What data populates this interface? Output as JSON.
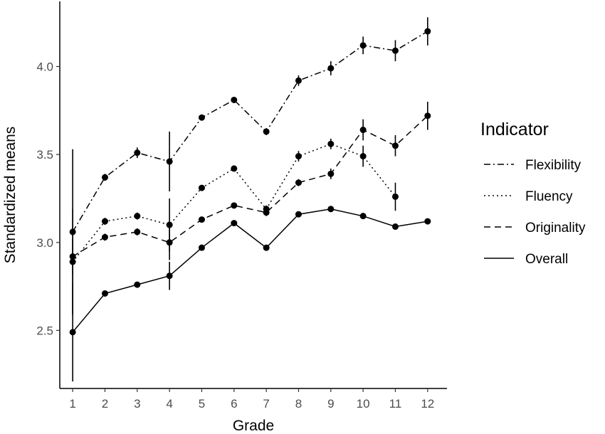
{
  "chart_data": {
    "type": "line",
    "xlabel": "Grade",
    "ylabel": "Standardized means",
    "x": [
      1,
      2,
      3,
      4,
      5,
      6,
      7,
      8,
      9,
      10,
      11,
      12
    ],
    "xlim": [
      0.6,
      12.6
    ],
    "ylim": [
      2.17,
      4.37
    ],
    "yticks": [
      2.5,
      3.0,
      3.5,
      4.0
    ],
    "yticklabels": [
      "2.5",
      "3.0",
      "3.5",
      "4.0"
    ],
    "grid": false,
    "legend": {
      "title": "Indicator",
      "position": "right",
      "entries": [
        "Flexibility",
        "Fluency",
        "Originality",
        "Overall"
      ]
    },
    "series": [
      {
        "name": "Flexibility",
        "dash": "dotdash",
        "values": [
          3.06,
          3.37,
          3.51,
          3.46,
          3.71,
          3.81,
          3.63,
          3.92,
          3.99,
          4.12,
          4.09,
          4.2
        ],
        "err": [
          0.47,
          0.02,
          0.03,
          0.17,
          0.01,
          0.01,
          0.02,
          0.03,
          0.04,
          0.05,
          0.06,
          0.08
        ]
      },
      {
        "name": "Fluency",
        "dash": "dotted",
        "values": [
          2.89,
          3.12,
          3.15,
          3.1,
          3.31,
          3.42,
          3.19,
          3.49,
          3.56,
          3.49,
          3.26,
          null
        ],
        "err": [
          0.3,
          0.02,
          0.02,
          0.15,
          0.01,
          0.01,
          0.02,
          0.03,
          0.03,
          0.06,
          0.08,
          null
        ]
      },
      {
        "name": "Originality",
        "dash": "dashed",
        "values": [
          2.92,
          3.03,
          3.06,
          3.0,
          3.13,
          3.21,
          3.17,
          3.34,
          3.39,
          3.64,
          3.55,
          3.72
        ],
        "err": [
          0.1,
          0.02,
          0.02,
          0.1,
          0.01,
          0.01,
          0.02,
          0.02,
          0.03,
          0.06,
          0.06,
          0.08
        ]
      },
      {
        "name": "Overall",
        "dash": "solid",
        "values": [
          2.49,
          2.71,
          2.76,
          2.81,
          2.97,
          3.11,
          2.97,
          3.16,
          3.19,
          3.15,
          3.09,
          3.12
        ],
        "err": [
          0.28,
          0.0,
          0.0,
          0.08,
          0.0,
          0.0,
          0.0,
          0.0,
          0.0,
          0.0,
          0.0,
          0.0
        ]
      }
    ]
  }
}
